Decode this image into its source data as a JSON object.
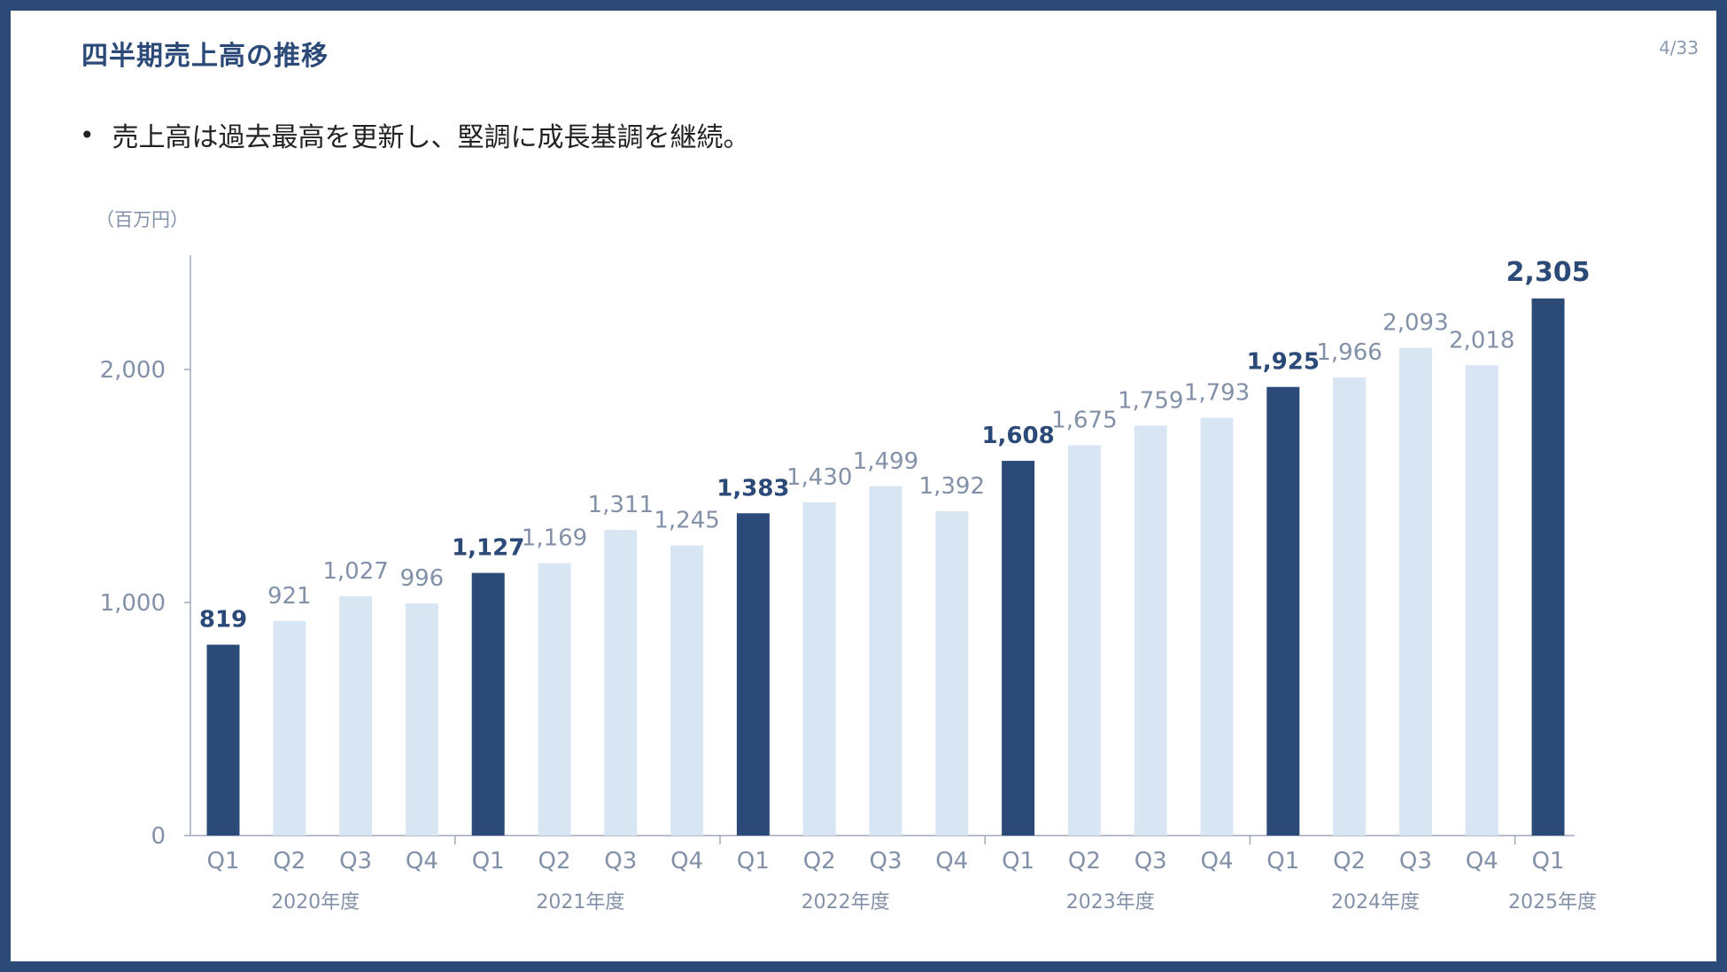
{
  "slide": {
    "title": "四半期売上高の推移",
    "page_number": "4/33",
    "bullet_text": "売上高は過去最高を更新し、堅調に成長基調を継続。"
  },
  "colors": {
    "frame": "#2b4a78",
    "highlight_bar": "#2b4a78",
    "regular_bar": "#d8e6f4",
    "highlight_label": "#2b4a78",
    "regular_label": "#8391a8",
    "axis_text": "#8391a8",
    "axis_line": "#a0a8b8"
  },
  "chart_data": {
    "type": "bar",
    "unit_label": "（百万円）",
    "ylim": [
      0,
      2500
    ],
    "yticks": [
      0,
      1000,
      2000
    ],
    "ytick_labels": [
      "0",
      "1,000",
      "2,000"
    ],
    "grid": false,
    "legend": "none",
    "categories": [
      "Q1",
      "Q2",
      "Q3",
      "Q4",
      "Q1",
      "Q2",
      "Q3",
      "Q4",
      "Q1",
      "Q2",
      "Q3",
      "Q4",
      "Q1",
      "Q2",
      "Q3",
      "Q4",
      "Q1",
      "Q2",
      "Q3",
      "Q4",
      "Q1"
    ],
    "values": [
      819,
      921,
      1027,
      996,
      1127,
      1169,
      1311,
      1245,
      1383,
      1430,
      1499,
      1392,
      1608,
      1675,
      1759,
      1793,
      1925,
      1966,
      2093,
      2018,
      2305
    ],
    "value_labels": [
      "819",
      "921",
      "1,027",
      "996",
      "1,127",
      "1,169",
      "1,311",
      "1,245",
      "1,383",
      "1,430",
      "1,499",
      "1,392",
      "1,608",
      "1,675",
      "1,759",
      "1,793",
      "1,925",
      "1,966",
      "2,093",
      "2,018",
      "2,305"
    ],
    "highlight": [
      true,
      false,
      false,
      false,
      true,
      false,
      false,
      false,
      true,
      false,
      false,
      false,
      true,
      false,
      false,
      false,
      true,
      false,
      false,
      false,
      true
    ],
    "groups": [
      {
        "label": "2020年度",
        "start": 0,
        "count": 4
      },
      {
        "label": "2021年度",
        "start": 4,
        "count": 4
      },
      {
        "label": "2022年度",
        "start": 8,
        "count": 4
      },
      {
        "label": "2023年度",
        "start": 12,
        "count": 4
      },
      {
        "label": "2024年度",
        "start": 16,
        "count": 4
      },
      {
        "label": "2025年度",
        "start": 20,
        "count": 1
      }
    ]
  }
}
